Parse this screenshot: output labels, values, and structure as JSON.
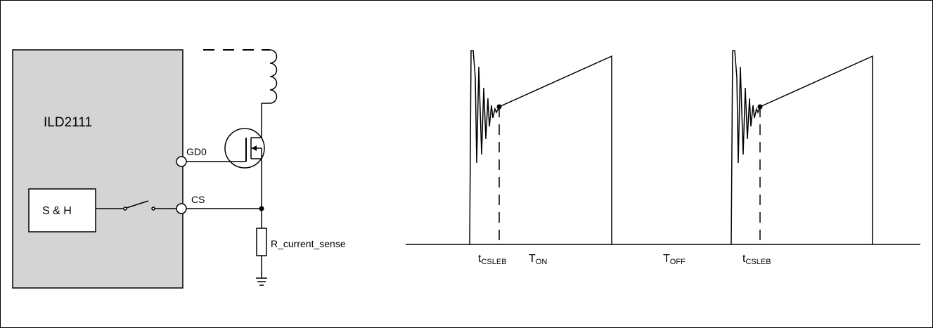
{
  "circuit": {
    "ic_name": "ILD2111",
    "pin_gate": "GD0",
    "pin_cs": "CS",
    "sample_hold": "S & H",
    "resistor": "R_current_sense"
  },
  "timing": {
    "label1_main": "t",
    "label1_sub": "CSLEB",
    "label2_main": "T",
    "label2_sub": "ON",
    "label3_main": "T",
    "label3_sub": "OFF",
    "label4_main": "t",
    "label4_sub": "CSLEB"
  },
  "colors": {
    "ic_fill": "#d4d4d4",
    "line": "#000000"
  }
}
